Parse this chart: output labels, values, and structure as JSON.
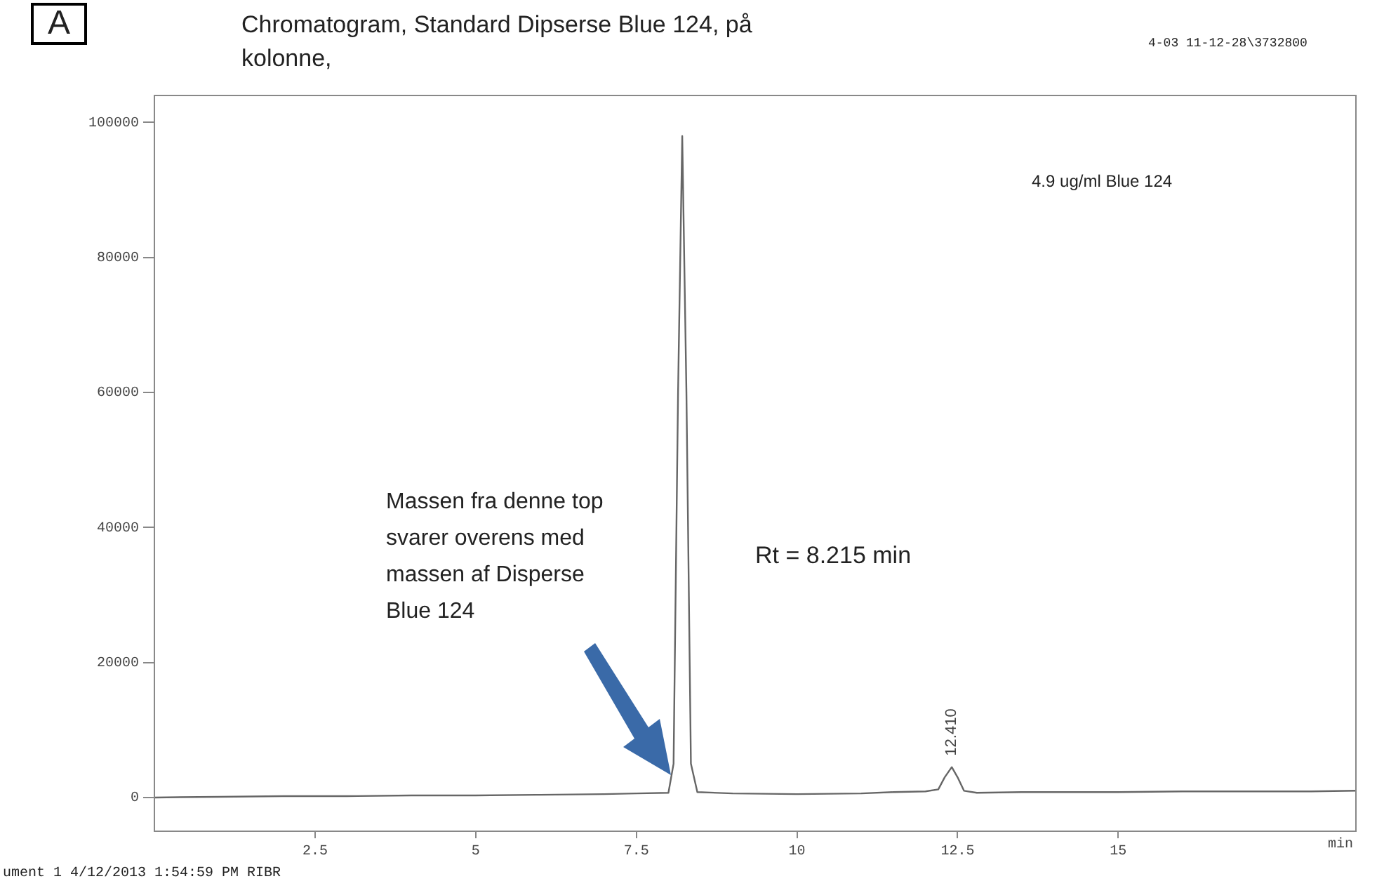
{
  "chart_data": {
    "type": "line",
    "title": "Chromatogram, Standard Dipserse Blue 124, på kolonne,",
    "xlabel": "min",
    "x": [
      0,
      1,
      2,
      3,
      4,
      5,
      6,
      7,
      7.5,
      8.0,
      8.08,
      8.15,
      8.215,
      8.28,
      8.35,
      8.45,
      9,
      10,
      11,
      11.5,
      12,
      12.2,
      12.3,
      12.41,
      12.5,
      12.6,
      12.8,
      13.5,
      14,
      15,
      16,
      17,
      18,
      18.7
    ],
    "series": [
      {
        "color": "#666666",
        "values": [
          0,
          100,
          200,
          200,
          300,
          300,
          400,
          500,
          600,
          700,
          5000,
          60000,
          98000,
          60000,
          5000,
          800,
          600,
          500,
          600,
          800,
          900,
          1200,
          3000,
          4500,
          3000,
          1000,
          700,
          800,
          800,
          800,
          900,
          900,
          900,
          1000
        ]
      }
    ],
    "xlim": [
      0,
      18.7
    ],
    "xticks": [
      2.5,
      5,
      7.5,
      10,
      12.5,
      15
    ],
    "ylim": [
      -5000,
      104000
    ],
    "yticks": [
      0,
      20000,
      40000,
      60000,
      80000,
      100000
    ],
    "annotations": [
      "A",
      "4-03 11-12-28\\3732800",
      "4.9 ug/ml Blue 124",
      "Massen fra denne top svarer overens med massen af Disperse Blue 124",
      "Rt = 8.215 min",
      {
        "text": "12.410",
        "x": 12.41,
        "y": 4500
      },
      "ument 1 4/12/2013 1:54:59 PM RIBR"
    ],
    "grid": false,
    "legend": false,
    "marker": "none",
    "line_style": "solid"
  }
}
